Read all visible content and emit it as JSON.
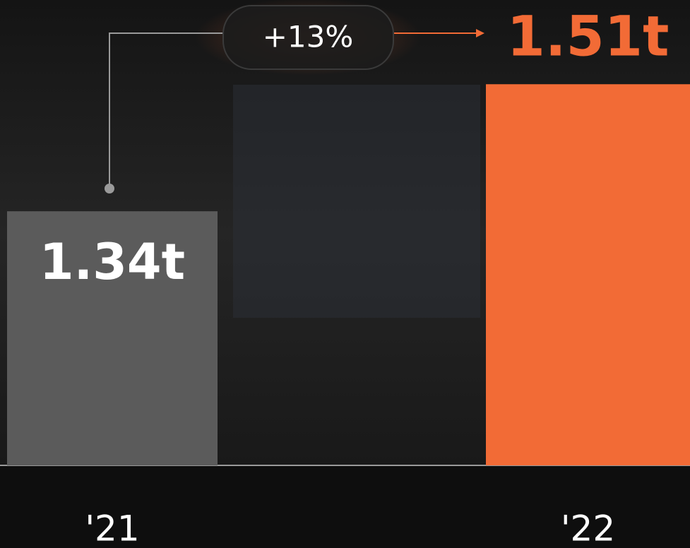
{
  "chart_data": {
    "type": "bar",
    "categories": [
      "'21",
      "'22"
    ],
    "values": [
      1.34,
      1.51
    ],
    "value_labels": [
      "1.34t",
      "1.51t"
    ],
    "colors": [
      "#5b5b5b",
      "#f26b36"
    ],
    "annotation": "+13%",
    "ylim": [
      1,
      1.6
    ]
  }
}
